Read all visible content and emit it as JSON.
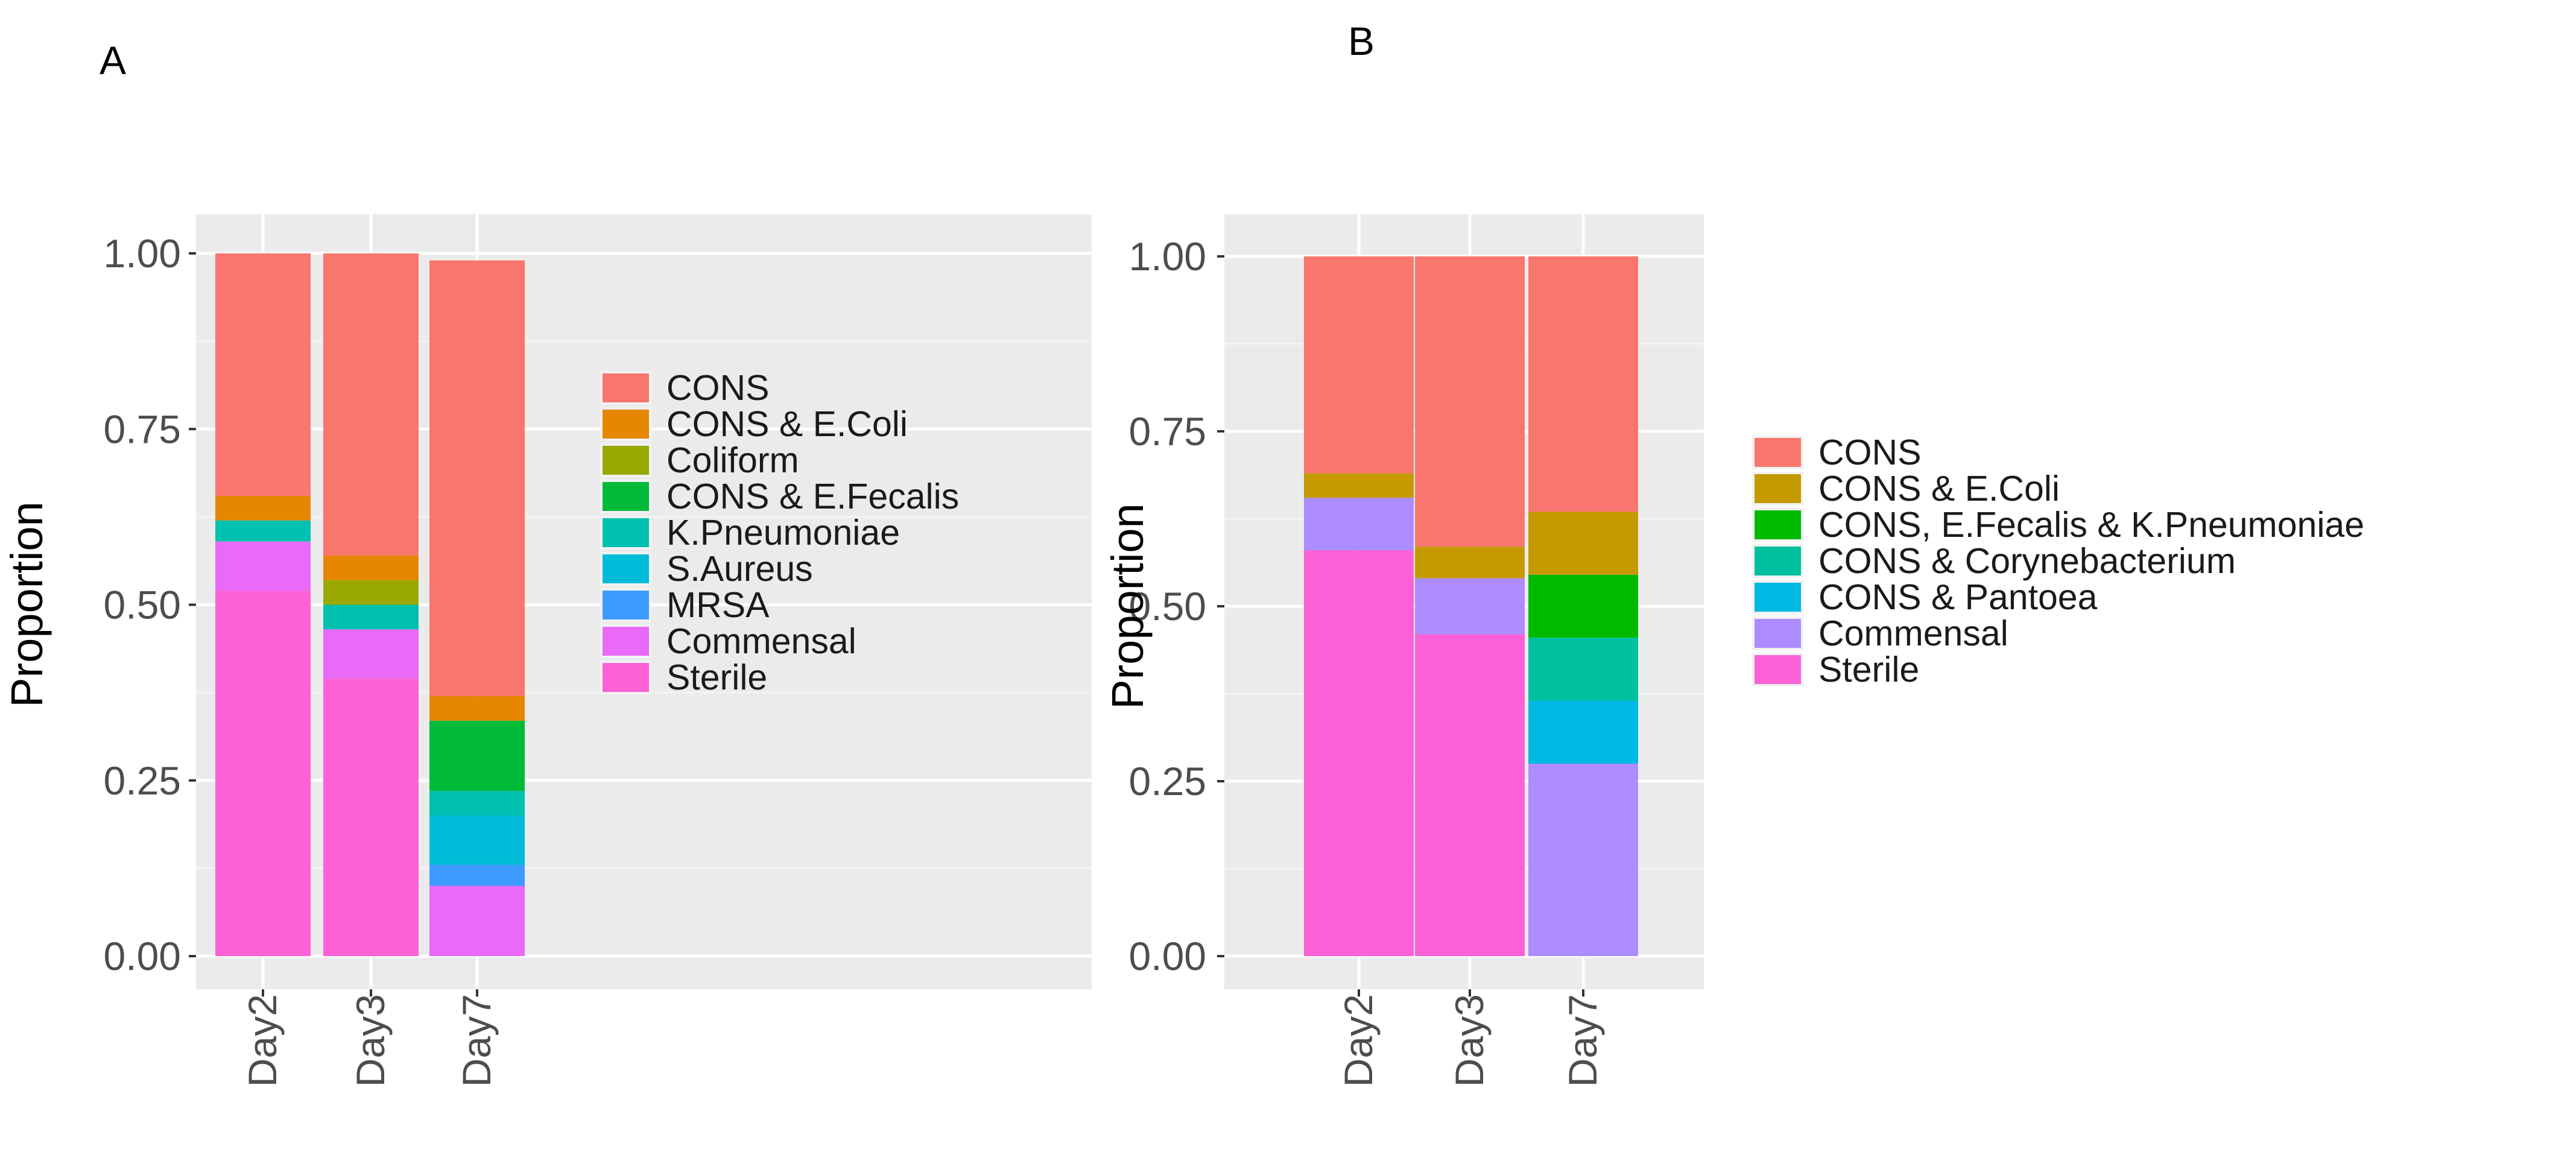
{
  "figure": {
    "panel_a_label": "A",
    "panel_b_label": "B"
  },
  "chart_data": [
    {
      "type": "bar",
      "stacked": true,
      "panel": "A",
      "title": "",
      "xlabel": "",
      "ylabel": "Proportion",
      "ylim": [
        0,
        1
      ],
      "yticks": [
        "0.00",
        "0.25",
        "0.50",
        "0.75",
        "1.00"
      ],
      "ytick_values": [
        0,
        0.25,
        0.5,
        0.75,
        1.0
      ],
      "categories": [
        "Day2",
        "Day3",
        "Day7"
      ],
      "legend_position": "right",
      "legend": [
        "CONS",
        "CONS & E.Coli",
        "Coliform",
        "CONS & E.Fecalis",
        "K.Pneumoniae",
        "S.Aureus",
        "MRSA",
        "Commensal",
        "Sterile"
      ],
      "stack_order_bottom_to_top": [
        "Sterile",
        "Commensal",
        "MRSA",
        "S.Aureus",
        "K.Pneumoniae",
        "CONS & E.Fecalis",
        "Coliform",
        "CONS & E.Coli",
        "CONS"
      ],
      "series": [
        {
          "name": "CONS",
          "color": "#F8766D",
          "values": [
            0.345,
            0.43,
            0.62
          ]
        },
        {
          "name": "CONS & E.Coli",
          "color": "#E58700",
          "values": [
            0.035,
            0.035,
            0.035
          ]
        },
        {
          "name": "Coliform",
          "color": "#99A800",
          "values": [
            0,
            0.035,
            0
          ]
        },
        {
          "name": "CONS & E.Fecalis",
          "color": "#00BA38",
          "values": [
            0,
            0,
            0.1
          ]
        },
        {
          "name": "K.Pneumoniae",
          "color": "#00C0AF",
          "values": [
            0.03,
            0.035,
            0.035
          ]
        },
        {
          "name": "S.Aureus",
          "color": "#00BCD8",
          "values": [
            0,
            0,
            0.07
          ]
        },
        {
          "name": "MRSA",
          "color": "#3D9AFF",
          "values": [
            0,
            0,
            0.03
          ]
        },
        {
          "name": "Commensal",
          "color": "#E96AF7",
          "values": [
            0.07,
            0.07,
            0.1
          ]
        },
        {
          "name": "Sterile",
          "color": "#FC61D5",
          "values": [
            0.52,
            0.395,
            0
          ]
        }
      ]
    },
    {
      "type": "bar",
      "stacked": true,
      "panel": "B",
      "title": "",
      "xlabel": "",
      "ylabel": "Proportion",
      "ylim": [
        0,
        1
      ],
      "yticks": [
        "0.00",
        "0.25",
        "0.50",
        "0.75",
        "1.00"
      ],
      "ytick_values": [
        0,
        0.25,
        0.5,
        0.75,
        1.0
      ],
      "categories": [
        "Day2",
        "Day3",
        "Day7"
      ],
      "legend_position": "right",
      "legend": [
        "CONS",
        "CONS & E.Coli",
        "CONS, E.Fecalis & K.Pneumoniae",
        "CONS & Corynebacterium",
        "CONS & Pantoea",
        "Commensal",
        "Sterile"
      ],
      "stack_order_bottom_to_top": [
        "Sterile",
        "Commensal",
        "CONS & Pantoea",
        "CONS & Corynebacterium",
        "CONS, E.Fecalis & K.Pneumoniae",
        "CONS & E.Coli",
        "CONS"
      ],
      "series": [
        {
          "name": "CONS",
          "color": "#F8766D",
          "values": [
            0.31,
            0.415,
            0.365
          ]
        },
        {
          "name": "CONS & E.Coli",
          "color": "#C49A00",
          "values": [
            0.035,
            0.045,
            0.09
          ]
        },
        {
          "name": "CONS, E.Fecalis & K.Pneumoniae",
          "color": "#00BA00",
          "values": [
            0,
            0,
            0.09
          ]
        },
        {
          "name": "CONS & Corynebacterium",
          "color": "#00C19F",
          "values": [
            0,
            0,
            0.09
          ]
        },
        {
          "name": "CONS & Pantoea",
          "color": "#00B9E3",
          "values": [
            0,
            0,
            0.09
          ]
        },
        {
          "name": "Commensal",
          "color": "#AD8CFF",
          "values": [
            0.075,
            0.08,
            0.275
          ]
        },
        {
          "name": "Sterile",
          "color": "#FB61D7",
          "values": [
            0.58,
            0.46,
            0
          ]
        }
      ]
    }
  ]
}
